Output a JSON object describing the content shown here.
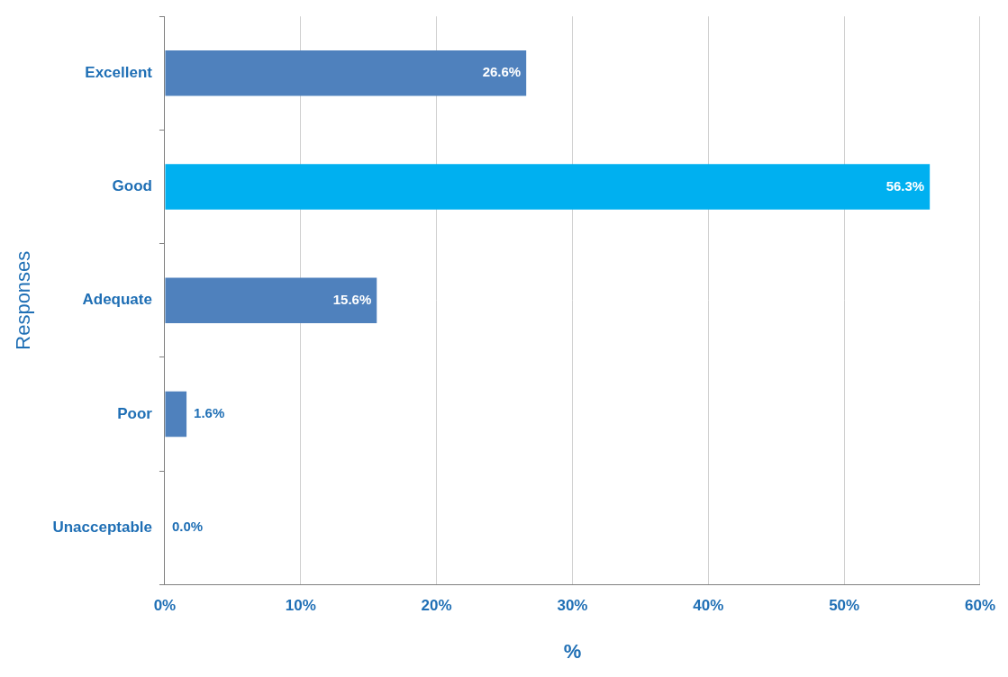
{
  "chart_data": {
    "type": "bar",
    "orientation": "horizontal",
    "categories": [
      "Excellent",
      "Good",
      "Adequate",
      "Poor",
      "Unacceptable"
    ],
    "values": [
      26.6,
      56.3,
      15.6,
      1.6,
      0.0
    ],
    "value_labels": [
      "26.6%",
      "56.3%",
      "15.6%",
      "1.6%",
      "0.0%"
    ],
    "colors": [
      "#4f81bd",
      "#00b0f0",
      "#4f81bd",
      "#4f81bd",
      "#4f81bd"
    ],
    "x_label": "%",
    "y_label": "Responses",
    "xlim": [
      0,
      60
    ],
    "xticks": [
      {
        "value": 0,
        "label": "0%"
      },
      {
        "value": 10,
        "label": "10%"
      },
      {
        "value": 20,
        "label": "20%"
      },
      {
        "value": 30,
        "label": "30%"
      },
      {
        "value": 40,
        "label": "40%"
      },
      {
        "value": 50,
        "label": "50%"
      },
      {
        "value": 60,
        "label": "60%"
      }
    ],
    "grid": true,
    "data_labels": true
  }
}
